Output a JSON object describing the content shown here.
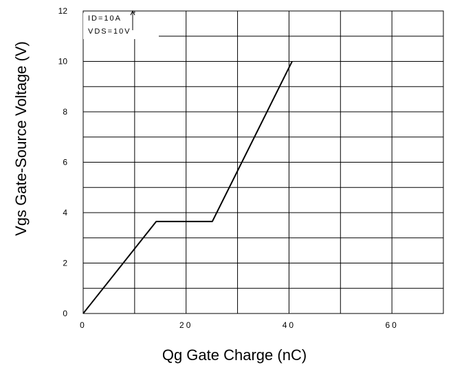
{
  "chart_data": {
    "type": "line",
    "xlabel": "Qg Gate Charge (nC)",
    "ylabel": "Vgs Gate-Source Voltage (V)",
    "xlim": [
      0,
      70
    ],
    "ylim": [
      0,
      12
    ],
    "x_ticks": [
      "0",
      "20",
      "40",
      "60"
    ],
    "x_tick_values": [
      0,
      20,
      40,
      60
    ],
    "y_ticks": [
      "0",
      "2",
      "4",
      "6",
      "8",
      "10",
      "12"
    ],
    "y_tick_values": [
      0,
      2,
      4,
      6,
      8,
      10,
      12
    ],
    "grid": true,
    "annotations": [
      "ID=10A",
      "VDS=10V"
    ],
    "series": [
      {
        "x": [
          0,
          14.2,
          25.1,
          40.6
        ],
        "y": [
          0,
          3.65,
          3.65,
          10.0
        ]
      }
    ]
  }
}
